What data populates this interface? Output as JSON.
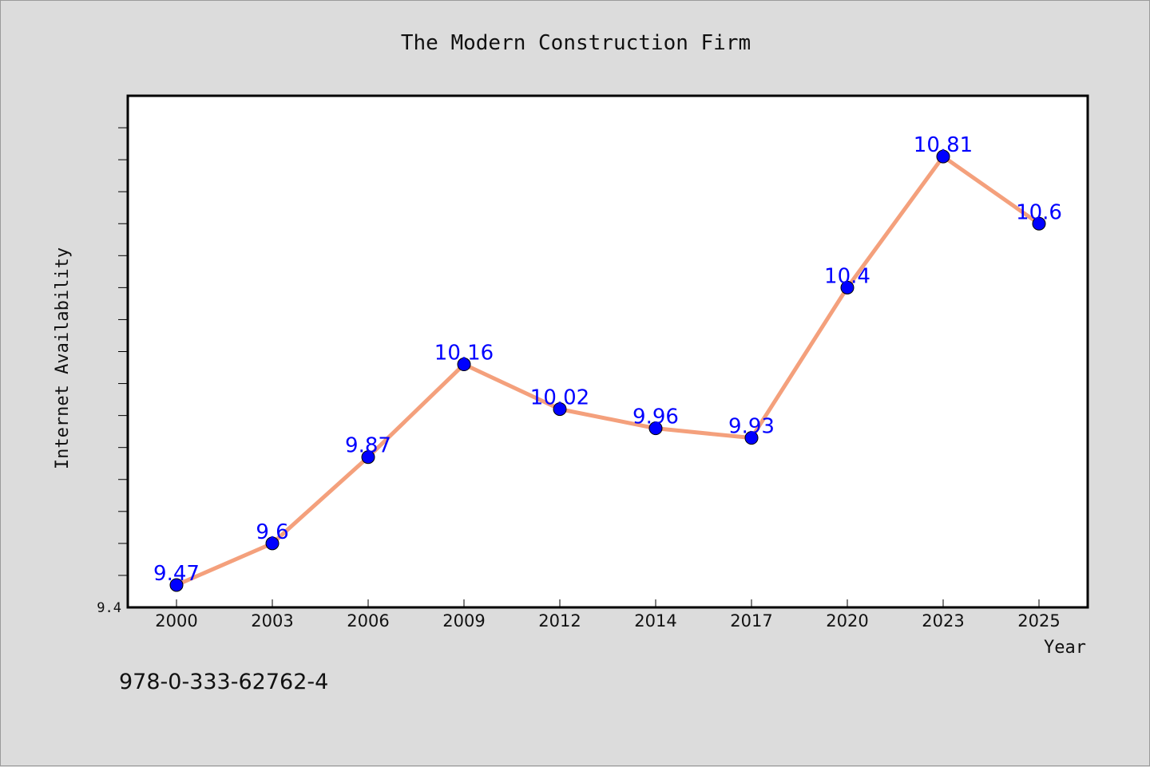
{
  "chart_data": {
    "type": "line",
    "title": "The Modern Construction Firm",
    "xlabel": "Year",
    "ylabel": "Internet Availability",
    "categories": [
      "2000",
      "2003",
      "2006",
      "2009",
      "2012",
      "2014",
      "2017",
      "2020",
      "2023",
      "2025"
    ],
    "series": [
      {
        "values": [
          9.47,
          9.6,
          9.87,
          10.16,
          10.02,
          9.96,
          9.93,
          10.4,
          10.81,
          10.6
        ],
        "labels": [
          "9.47",
          "9.6",
          "9.87",
          "10.16",
          "10.02",
          "9.96",
          "9.93",
          "10.4",
          "10.81",
          "10.6"
        ],
        "line_color": "#f4a07c",
        "marker_color": "#0000ff",
        "label_color": "#0000ff"
      }
    ],
    "yticks": [
      {
        "value": 9.4,
        "label": "9.4"
      }
    ],
    "ylim": [
      9.4,
      11.0
    ],
    "grid": false,
    "legend": "none"
  },
  "footnote": "978-0-333-62762-4",
  "colors": {
    "background": "#dcdcdc",
    "plot_background": "#ffffff",
    "axis": "#000000"
  }
}
